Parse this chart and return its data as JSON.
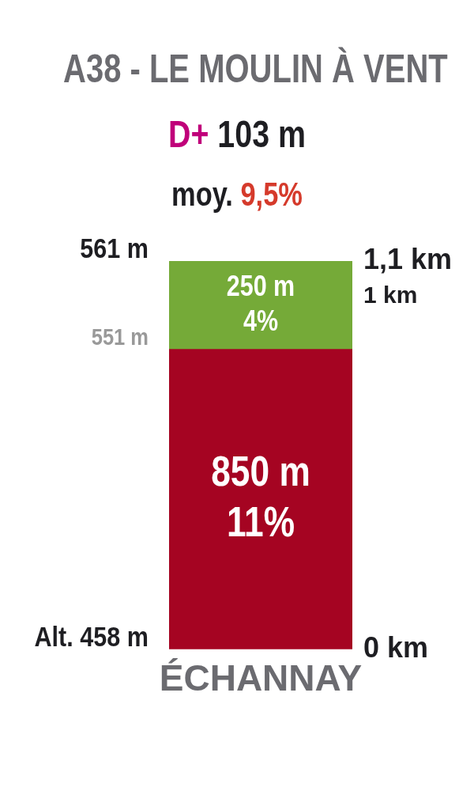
{
  "chart_data": {
    "type": "bar",
    "title": "A38 - LE MOULIN À VENT",
    "subtitle": "D+ 103 m",
    "annotations": [
      "moy. 9,5%",
      "Alt. 458 m",
      "551 m",
      "561 m",
      "850 m\n11%",
      "250 m\n4%"
    ],
    "categories": [
      "ÉCHANNAY"
    ],
    "stacked": true,
    "grid": false,
    "legend": false,
    "ylim": [
      0,
      1.1
    ],
    "yticks": [
      {
        "value": 0,
        "label": "0 km"
      },
      {
        "value": 1,
        "label": "1 km"
      },
      {
        "value": 1.1,
        "label": "1,1 km"
      }
    ],
    "series": [
      {
        "color": "#a50422",
        "values": [
          0.85
        ]
      },
      {
        "color": "#75aa38",
        "values": [
          0.25
        ]
      }
    ]
  }
}
